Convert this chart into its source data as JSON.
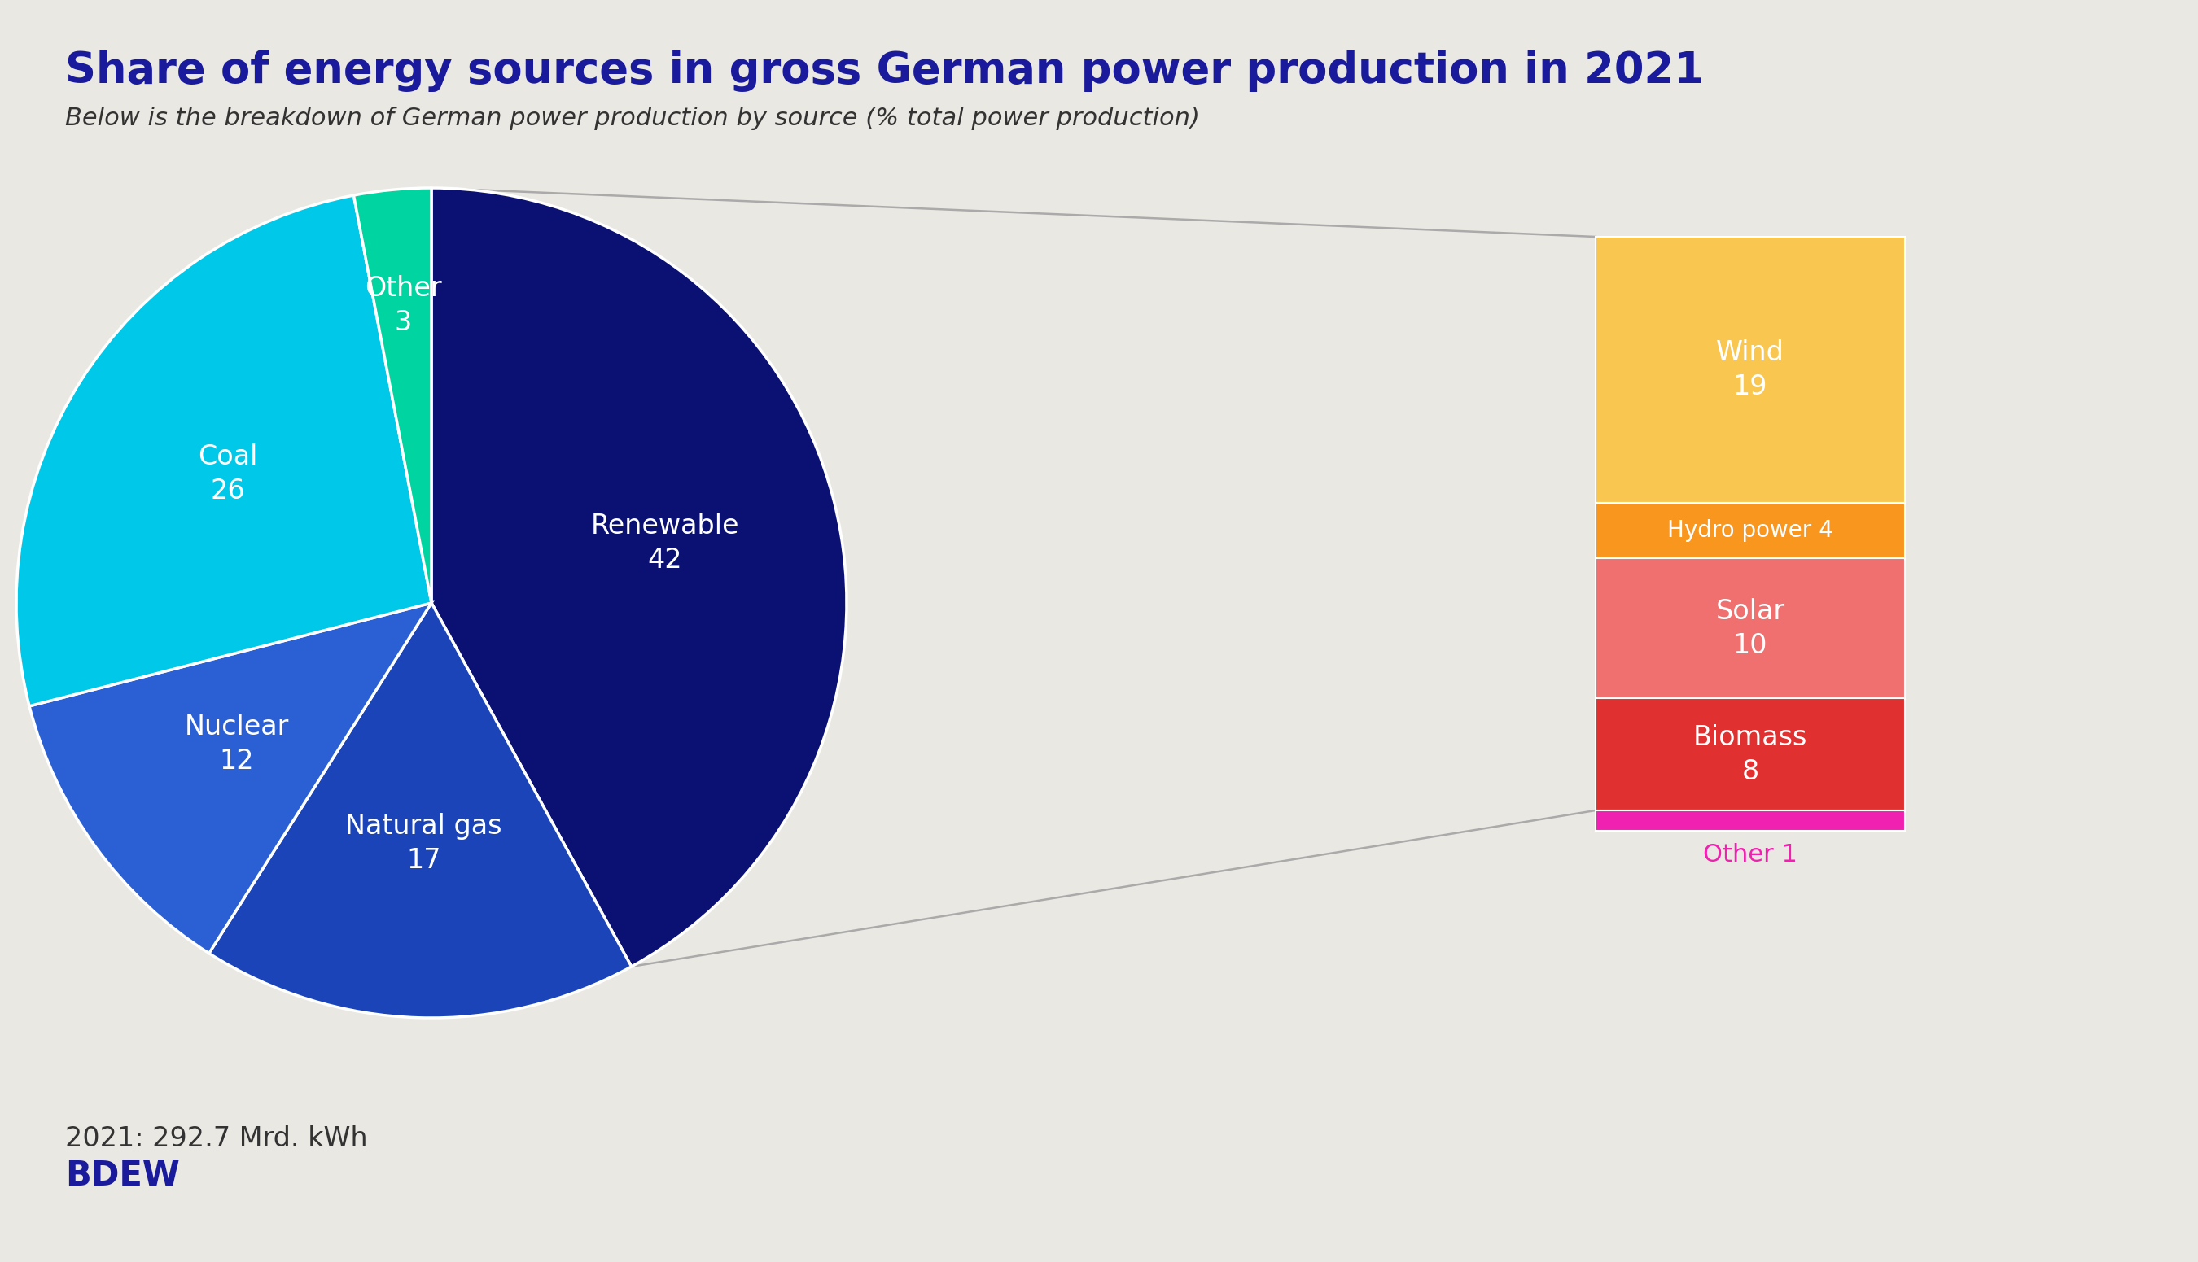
{
  "title": "Share of energy sources in gross German power production in 2021",
  "subtitle": "Below is the breakdown of German power production by source (% total power production)",
  "footer_line1": "2021: 292.7 Mrd. kWh",
  "footer_line2": "BDEW",
  "background_color": "#EAE8E2",
  "pie_data": {
    "labels": [
      "Renewable",
      "Natural gas",
      "Nuclear",
      "Coal",
      "Other"
    ],
    "values": [
      42,
      17,
      12,
      26,
      3
    ],
    "colors": [
      "#0A1172",
      "#1A44B8",
      "#2B60D4",
      "#00C8E8",
      "#00D4A0"
    ],
    "text_color": "#FFFFFF",
    "start_angle": 90
  },
  "bar_data": {
    "labels": [
      "Wind",
      "Hydro power",
      "Solar",
      "Biomass",
      "Other"
    ],
    "values": [
      19,
      4,
      10,
      8,
      1
    ],
    "colors": [
      "#F9C74F",
      "#F8961E",
      "#F07070",
      "#E03030",
      "#F020B0"
    ],
    "text_color": "#FFFFFF"
  },
  "title_color": "#1A1A9C",
  "subtitle_color": "#333333",
  "footer_color1": "#333333",
  "footer_color2": "#1A1A9C",
  "line_color": "#AAAAAA"
}
